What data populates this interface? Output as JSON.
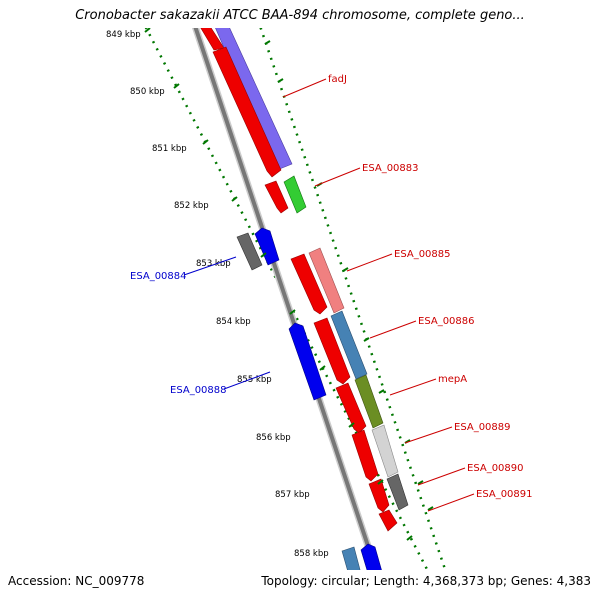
{
  "title": "Cronobacter sakazakii ATCC BAA-894 chromosome, complete geno...",
  "footer": {
    "accession": "Accession: NC_009778",
    "summary": "Topology: circular; Length: 4,368,373 bp; Genes: 4,383"
  },
  "colors": {
    "forward_strand": "#ff0000",
    "reverse_strand": "#0000ff",
    "forward_label": "#cc0000",
    "reverse_label": "#0000cc",
    "tick": "#007700",
    "backbone": "#888888"
  },
  "ticks": [
    "849 kbp",
    "850 kbp",
    "851 kbp",
    "852 kbp",
    "853 kbp",
    "854 kbp",
    "855 kbp",
    "856 kbp",
    "857 kbp",
    "858 kbp"
  ],
  "gene_labels": {
    "fadJ": "fadJ",
    "ESA_00883": "ESA_00883",
    "ESA_00885": "ESA_00885",
    "ESA_00886": "ESA_00886",
    "mepA": "mepA",
    "ESA_00889": "ESA_00889",
    "ESA_00890": "ESA_00890",
    "ESA_00891": "ESA_00891",
    "ESA_00884": "ESA_00884",
    "ESA_00888": "ESA_00888"
  }
}
